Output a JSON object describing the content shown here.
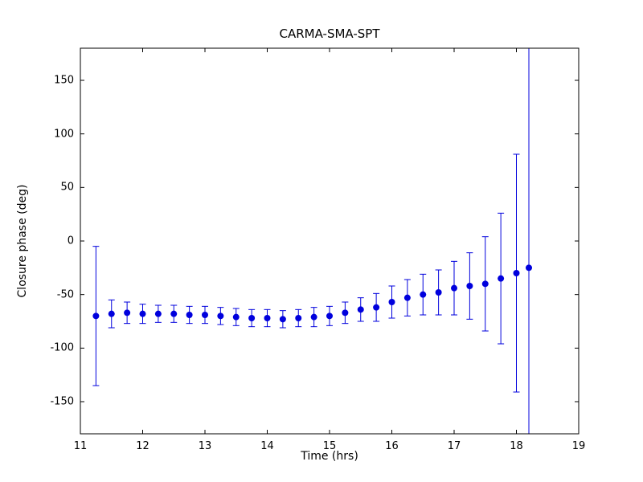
{
  "chart_data": {
    "type": "scatter",
    "title": "CARMA-SMA-SPT",
    "xlabel": "Time (hrs)",
    "ylabel": "Closure phase (deg)",
    "xlim": [
      11,
      19
    ],
    "ylim": [
      -180,
      180
    ],
    "xticks": [
      11,
      12,
      13,
      14,
      15,
      16,
      17,
      18,
      19
    ],
    "yticks": [
      -150,
      -100,
      -50,
      0,
      50,
      100,
      150
    ],
    "grid": false,
    "legend": "none",
    "marker_color": "#0000dd",
    "frame_color": "#000000",
    "series": [
      {
        "name": "closure-phase",
        "x": [
          11.25,
          11.5,
          11.75,
          12.0,
          12.25,
          12.5,
          12.75,
          13.0,
          13.25,
          13.5,
          13.75,
          14.0,
          14.25,
          14.5,
          14.75,
          15.0,
          15.25,
          15.5,
          15.75,
          16.0,
          16.25,
          16.5,
          16.75,
          17.0,
          17.25,
          17.5,
          17.75,
          18.0,
          18.2
        ],
        "y": [
          -70,
          -68,
          -67,
          -68,
          -68,
          -68,
          -69,
          -69,
          -70,
          -71,
          -72,
          -72,
          -73,
          -72,
          -71,
          -70,
          -67,
          -64,
          -62,
          -57,
          -53,
          -50,
          -48,
          -44,
          -42,
          -40,
          -35,
          -30,
          -25
        ],
        "yerr": [
          65,
          13,
          10,
          9,
          8,
          8,
          8,
          8,
          8,
          8,
          8,
          8,
          8,
          8,
          9,
          9,
          10,
          11,
          13,
          15,
          17,
          19,
          21,
          25,
          31,
          44,
          61,
          111,
          250
        ]
      }
    ]
  }
}
